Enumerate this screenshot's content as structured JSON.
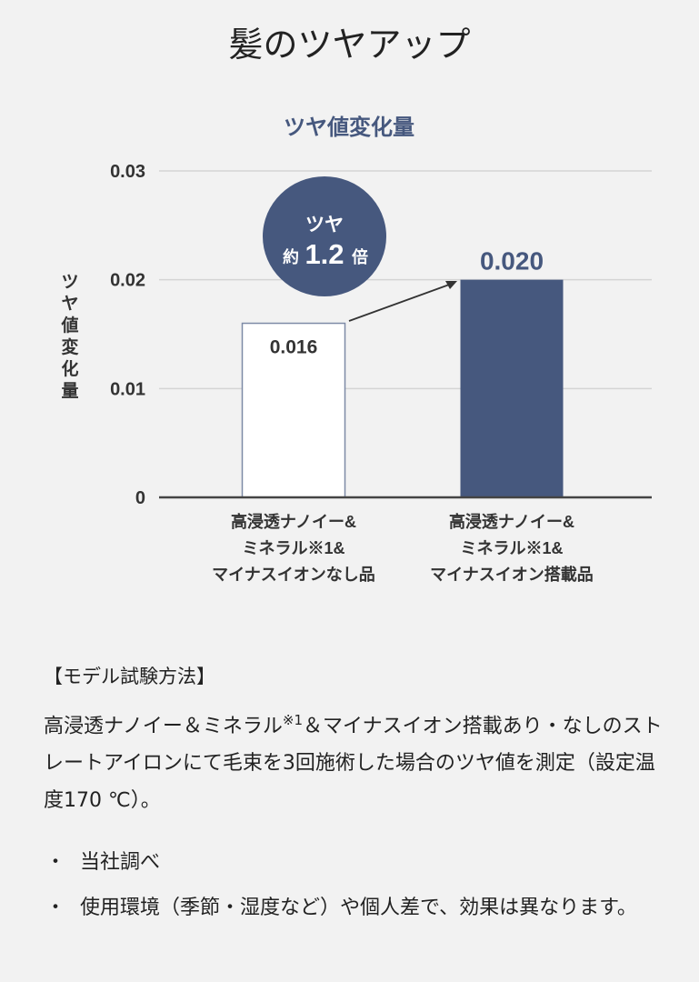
{
  "page_title": "髪のツヤアップ",
  "chart_data": {
    "type": "bar",
    "title": "ツヤ値変化量",
    "ylabel": "ツヤ値変化量",
    "xlabel": "",
    "ylim": [
      0,
      0.03
    ],
    "yticks": [
      "0.03",
      "0.02",
      "0.01",
      "0"
    ],
    "grid": true,
    "categories": [
      [
        "高浸透ナノイー&",
        "ミネラル※1&",
        "マイナスイオンなし品"
      ],
      [
        "高浸透ナノイー&",
        "ミネラル※1&",
        "マイナスイオン搭載品"
      ]
    ],
    "values": [
      0.016,
      0.02
    ],
    "data_labels": [
      "0.016",
      "0.020"
    ],
    "bar_colors": [
      "#ffffff",
      "#46587e"
    ],
    "accent_color": "#46587e",
    "badge": {
      "line1": "ツヤ",
      "prefix": "約",
      "number": "1.2",
      "suffix": "倍"
    }
  },
  "method": {
    "heading": "【モデル試験方法】",
    "text_before": "高浸透ナノイー＆ミネラル",
    "sup": "※1",
    "text_after": "＆マイナスイオン搭載あり・なしのストレートアイロンにて毛束を3回施術した場合のツヤ値を測定（設定温度170 ℃）。"
  },
  "notes": [
    {
      "bullet": "・",
      "text": "当社調べ"
    },
    {
      "bullet": "・",
      "text": "使用環境（季節・湿度など）や個人差で、効果は異なります。"
    }
  ]
}
